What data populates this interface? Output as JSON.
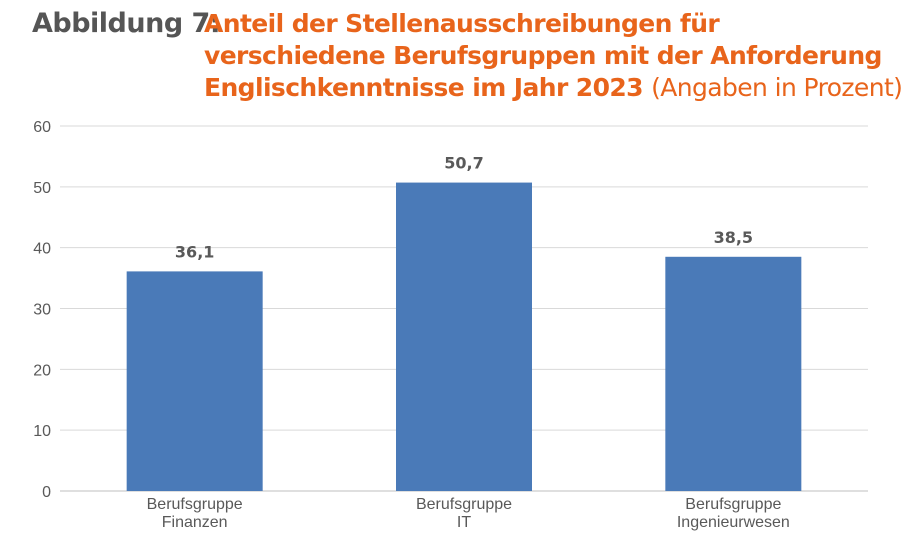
{
  "figure": {
    "label": "Abbildung 7:",
    "title": "Anteil der Stellenausschreibungen für verschiedene Berufsgruppen mit der Anforderung Englisch­kenntnisse im Jahr 2023",
    "unit_note": "(Angaben in Prozent)"
  },
  "colors": {
    "bar": "#4a7ab8",
    "title": "#e8641b",
    "label": "#555555",
    "grid": "#d9d9d9"
  },
  "chart_data": {
    "type": "bar",
    "categories": [
      [
        "Berufsgruppe",
        "Finanzen"
      ],
      [
        "Berufsgruppe",
        "IT"
      ],
      [
        "Berufsgruppe",
        "Ingenieurwesen"
      ]
    ],
    "values": [
      36.1,
      50.7,
      38.5
    ],
    "value_labels": [
      "36,1",
      "50,7",
      "38,5"
    ],
    "ylim": [
      0,
      60
    ],
    "yticks": [
      0,
      10,
      20,
      30,
      40,
      50,
      60
    ],
    "grid": true,
    "legend": "none"
  }
}
